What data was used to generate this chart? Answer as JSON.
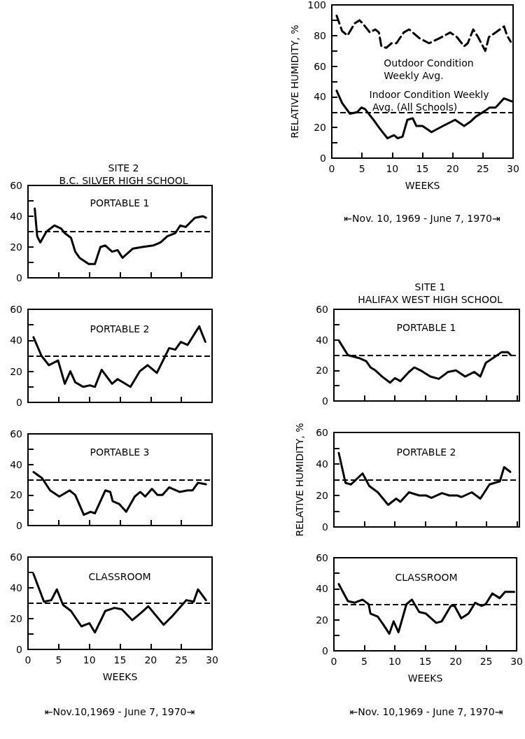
{
  "chart_data": [
    {
      "type": "line",
      "ylabel": "RELATIVE HUMIDITY, %",
      "xlabel": "WEEKS",
      "annotations": [
        "⇤Nov. 10, 1969 - June 7, 1970⇥"
      ],
      "xlim": [
        0,
        30
      ],
      "xticks": [
        0,
        5,
        10,
        15,
        20,
        25,
        30
      ],
      "ylim": [
        0,
        100
      ],
      "yticks": [
        0,
        {
          "value": 10,
          "label": null
        },
        20,
        {
          "value": 30,
          "label": null
        },
        40,
        {
          "value": 50,
          "label": null
        },
        60,
        {
          "value": 70,
          "label": null
        },
        80,
        {
          "value": 90,
          "label": null
        },
        100
      ],
      "grid": false,
      "legend": false,
      "marker": "none",
      "ref_lines": [
        {
          "axis": "y",
          "value": 30,
          "line_style": "dashed",
          "color": "#000000"
        }
      ],
      "series": [
        {
          "name": "Outdoor Condition Weekly Avg.",
          "color": "#000000",
          "line_style": "dashed",
          "x": [
            0.8,
            1.7,
            2.6,
            3.8,
            4.6,
            5.3,
            6.3,
            7.2,
            7.8,
            8.2,
            9,
            9.9,
            10.7,
            11.9,
            12.8,
            14.6,
            16.1,
            17.7,
            19.6,
            20.7,
            21.9,
            22.5,
            23.4,
            24.2,
            25.4,
            26,
            27.1,
            28.5,
            29,
            29.6
          ],
          "values": [
            93,
            83,
            80,
            88,
            90,
            87,
            82,
            84,
            82,
            73,
            72,
            75,
            75,
            82,
            84,
            78,
            75,
            78,
            82,
            79,
            73,
            75,
            84,
            79,
            70,
            79,
            82,
            86,
            80,
            76
          ]
        },
        {
          "name": "Indoor Condition Weekly Avg. (All Schools)",
          "color": "#000000",
          "line_style": "solid",
          "x": [
            0.8,
            1.7,
            3,
            4.2,
            4.9,
            5.5,
            6.9,
            8,
            9.2,
            10.3,
            10.9,
            11.7,
            12.5,
            13.4,
            14,
            15,
            16.5,
            18.4,
            20.4,
            21.9,
            23,
            23.8,
            25.4,
            26.1,
            27.1,
            28.5,
            29.8
          ],
          "values": [
            44,
            36,
            29,
            30,
            33,
            32,
            25,
            19,
            13,
            15,
            13,
            14,
            25,
            26,
            21,
            21,
            17,
            21,
            25,
            21,
            24,
            27,
            31,
            33,
            33,
            39,
            37
          ]
        }
      ]
    },
    {
      "type": "line",
      "title": "SITE 2",
      "subtitle": "B.C. SILVER HIGH SCHOOL",
      "annotations": [
        "PORTABLE 1"
      ],
      "xlim": [
        0,
        30
      ],
      "xticks": [
        0,
        5,
        10,
        15,
        20,
        25,
        30
      ],
      "ylim": [
        0,
        60
      ],
      "yticks": [
        0,
        {
          "value": 10,
          "label": null
        },
        20,
        {
          "value": 30,
          "label": null
        },
        40,
        {
          "value": 50,
          "label": null
        },
        60
      ],
      "tick_labels": "y",
      "grid": false,
      "legend": false,
      "marker": "none",
      "ref_lines": [
        {
          "axis": "y",
          "value": 30,
          "line_style": "dashed",
          "color": "#000000"
        }
      ],
      "series": [
        {
          "color": "#000000",
          "x": [
            1.1,
            1.5,
            2,
            3,
            4.3,
            5.4,
            6,
            7,
            7.7,
            8.4,
            9.9,
            10.9,
            11.8,
            12.6,
            13.7,
            14.6,
            15.4,
            17.1,
            18.6,
            20.4,
            21.6,
            22.7,
            24,
            24.8,
            25.7,
            27.2,
            28.5,
            29
          ],
          "values": [
            45,
            27,
            23,
            30,
            34,
            32,
            29,
            26,
            17,
            13,
            9,
            9,
            20,
            21,
            17,
            18,
            13,
            19,
            20,
            21,
            23,
            27,
            29,
            34,
            33,
            39,
            40,
            39
          ]
        }
      ]
    },
    {
      "type": "line",
      "annotations": [
        "PORTABLE 2"
      ],
      "xlim": [
        0,
        30
      ],
      "xticks": [
        0,
        5,
        10,
        15,
        20,
        25,
        30
      ],
      "ylim": [
        0,
        60
      ],
      "yticks": [
        0,
        {
          "value": 10,
          "label": null
        },
        20,
        {
          "value": 30,
          "label": null
        },
        40,
        {
          "value": 50,
          "label": null
        },
        60
      ],
      "tick_labels": "y",
      "grid": false,
      "legend": false,
      "marker": "none",
      "ref_lines": [
        {
          "axis": "y",
          "value": 30,
          "line_style": "dashed",
          "color": "#000000"
        }
      ],
      "series": [
        {
          "color": "#000000",
          "x": [
            0.9,
            2.2,
            3.4,
            4.9,
            6,
            6.9,
            7.7,
            9,
            10.1,
            10.9,
            12,
            13.7,
            14.6,
            16.7,
            18.2,
            19.5,
            21,
            23,
            24,
            24.9,
            26,
            27.9,
            28.9
          ],
          "values": [
            42,
            30,
            24,
            27,
            12,
            20,
            13,
            10,
            11,
            10,
            21,
            12,
            15,
            10,
            20,
            24,
            19,
            35,
            34,
            39,
            37,
            49,
            39
          ]
        }
      ]
    },
    {
      "type": "line",
      "annotations": [
        "PORTABLE 3"
      ],
      "xlim": [
        0,
        30
      ],
      "xticks": [
        0,
        5,
        10,
        15,
        20,
        25,
        30
      ],
      "ylim": [
        0,
        60
      ],
      "yticks": [
        0,
        {
          "value": 10,
          "label": null
        },
        20,
        {
          "value": 30,
          "label": null
        },
        40,
        {
          "value": 50,
          "label": null
        },
        60
      ],
      "tick_labels": "y",
      "grid": false,
      "legend": false,
      "marker": "none",
      "ref_lines": [
        {
          "axis": "y",
          "value": 30,
          "line_style": "dashed",
          "color": "#000000"
        }
      ],
      "series": [
        {
          "color": "#000000",
          "x": [
            0.9,
            2.3,
            3.6,
            5.1,
            6.8,
            7.7,
            9.1,
            10.2,
            10.9,
            12.6,
            13.4,
            13.8,
            14.9,
            16,
            17.4,
            18.3,
            19.1,
            20.2,
            21.1,
            21.9,
            23,
            24.7,
            26,
            26.8,
            27.7,
            29
          ],
          "values": [
            35,
            31,
            23,
            19,
            23,
            20,
            7,
            9,
            8,
            23,
            22,
            16,
            14,
            9,
            19,
            22,
            19,
            24,
            20,
            20,
            25,
            22,
            23,
            23,
            28,
            27
          ]
        }
      ]
    },
    {
      "type": "line",
      "xlabel": "WEEKS",
      "annotations": [
        "CLASSROOM",
        "⇤Nov.10,1969 - June 7, 1970⇥"
      ],
      "xlim": [
        0,
        30
      ],
      "xticks": [
        0,
        5,
        10,
        15,
        20,
        25,
        30
      ],
      "ylim": [
        0,
        60
      ],
      "yticks": [
        0,
        {
          "value": 10,
          "label": null
        },
        20,
        {
          "value": 30,
          "label": null
        },
        40,
        {
          "value": 50,
          "label": null
        },
        60
      ],
      "grid": false,
      "legend": false,
      "marker": "none",
      "ref_lines": [
        {
          "axis": "y",
          "value": 30,
          "line_style": "dashed",
          "color": "#000000"
        }
      ],
      "series": [
        {
          "color": "#000000",
          "x": [
            0.9,
            2.6,
            3.8,
            4.7,
            5.7,
            7,
            8.7,
            10,
            10.9,
            12.6,
            14.1,
            15.3,
            17,
            18.5,
            19.6,
            22.1,
            23.6,
            25.8,
            27,
            27.7,
            29
          ],
          "values": [
            49,
            31,
            32,
            39,
            29,
            25,
            15,
            17,
            11,
            25,
            27,
            26,
            19,
            24,
            28,
            16,
            22,
            32,
            31,
            39,
            32
          ]
        }
      ]
    },
    {
      "type": "line",
      "title": "SITE 1",
      "subtitle": "HALIFAX WEST HIGH SCHOOL",
      "annotations": [
        "PORTABLE 1"
      ],
      "xlim": [
        0,
        30.4
      ],
      "xticks": [
        0,
        5,
        10,
        15,
        20,
        25,
        30
      ],
      "ylim": [
        0,
        60
      ],
      "yticks": [
        0,
        {
          "value": 10,
          "label": null
        },
        20,
        {
          "value": 30,
          "label": null
        },
        40,
        {
          "value": 50,
          "label": null
        },
        60
      ],
      "tick_labels": "y",
      "grid": false,
      "legend": false,
      "marker": "none",
      "ref_lines": [
        {
          "axis": "y",
          "value": 30,
          "line_style": "dashed",
          "color": "#000000"
        }
      ],
      "series": [
        {
          "color": "#000000",
          "x": [
            0.9,
            2.3,
            4.2,
            5.3,
            6,
            6.8,
            7.9,
            9.2,
            10,
            10.9,
            12.3,
            13.2,
            14.2,
            15.8,
            17.2,
            18.7,
            20,
            21.5,
            23,
            24,
            24.9,
            26.4,
            27.5,
            28.5,
            29
          ],
          "values": [
            39,
            30,
            28,
            26,
            22,
            20,
            16,
            12,
            15,
            13,
            19,
            22,
            20,
            16,
            14.5,
            19,
            20,
            16,
            19,
            16,
            25,
            29,
            32,
            32,
            30
          ]
        }
      ]
    },
    {
      "type": "line",
      "ylabel": "RELATIVE HUMIDITY, %",
      "annotations": [
        "PORTABLE 2"
      ],
      "xlim": [
        0,
        30.4
      ],
      "xticks": [
        0,
        5,
        10,
        15,
        20,
        25,
        30
      ],
      "ylim": [
        0,
        60
      ],
      "yticks": [
        0,
        {
          "value": 10,
          "label": null
        },
        20,
        {
          "value": 30,
          "label": null
        },
        40,
        {
          "value": 50,
          "label": null
        },
        60
      ],
      "tick_labels": "y",
      "grid": false,
      "legend": false,
      "marker": "none",
      "ref_lines": [
        {
          "axis": "y",
          "value": 30,
          "line_style": "dashed",
          "color": "#000000"
        }
      ],
      "series": [
        {
          "color": "#000000",
          "x": [
            0.8,
            1.9,
            2.8,
            4.7,
            5.8,
            7.2,
            8.9,
            10.2,
            10.9,
            12.3,
            14,
            15.1,
            16,
            17.7,
            18.9,
            20.2,
            20.9,
            22.6,
            24,
            25.5,
            27.2,
            27.9,
            28.9
          ],
          "values": [
            47,
            28,
            27,
            34,
            26,
            22,
            14,
            18,
            16,
            22,
            20,
            20,
            18.5,
            21.5,
            20,
            20,
            19,
            22,
            18,
            27,
            29,
            38,
            35
          ]
        }
      ]
    },
    {
      "type": "line",
      "xlabel": "WEEKS",
      "annotations": [
        "CLASSROOM",
        "⇤Nov. 10,1969 - June 7, 1970⇥"
      ],
      "xlim": [
        0,
        30
      ],
      "xticks": [
        0,
        5,
        10,
        15,
        20,
        25,
        30
      ],
      "ylim": [
        0,
        60
      ],
      "yticks": [
        0,
        {
          "value": 10,
          "label": null
        },
        20,
        {
          "value": 30,
          "label": null
        },
        40,
        {
          "value": 50,
          "label": null
        },
        60
      ],
      "grid": false,
      "legend": false,
      "marker": "none",
      "ref_lines": [
        {
          "axis": "y",
          "value": 30,
          "line_style": "dashed",
          "color": "#000000"
        }
      ],
      "series": [
        {
          "color": "#000000",
          "x": [
            0.8,
            2.3,
            3.4,
            4.7,
            5.7,
            6,
            7.2,
            8.1,
            9.1,
            9.8,
            10.6,
            11.9,
            12.8,
            14,
            15.1,
            16.8,
            17.7,
            19.2,
            19.8,
            20.9,
            22.1,
            23.2,
            24.2,
            24.9,
            26,
            27.2,
            28.1,
            29.6
          ],
          "values": [
            43,
            32,
            31,
            33,
            30,
            24,
            22,
            17,
            11,
            19,
            12,
            30,
            33,
            25,
            24,
            18,
            19,
            29,
            29,
            21,
            24,
            31,
            29,
            30,
            37,
            34,
            38,
            38
          ]
        }
      ]
    }
  ]
}
